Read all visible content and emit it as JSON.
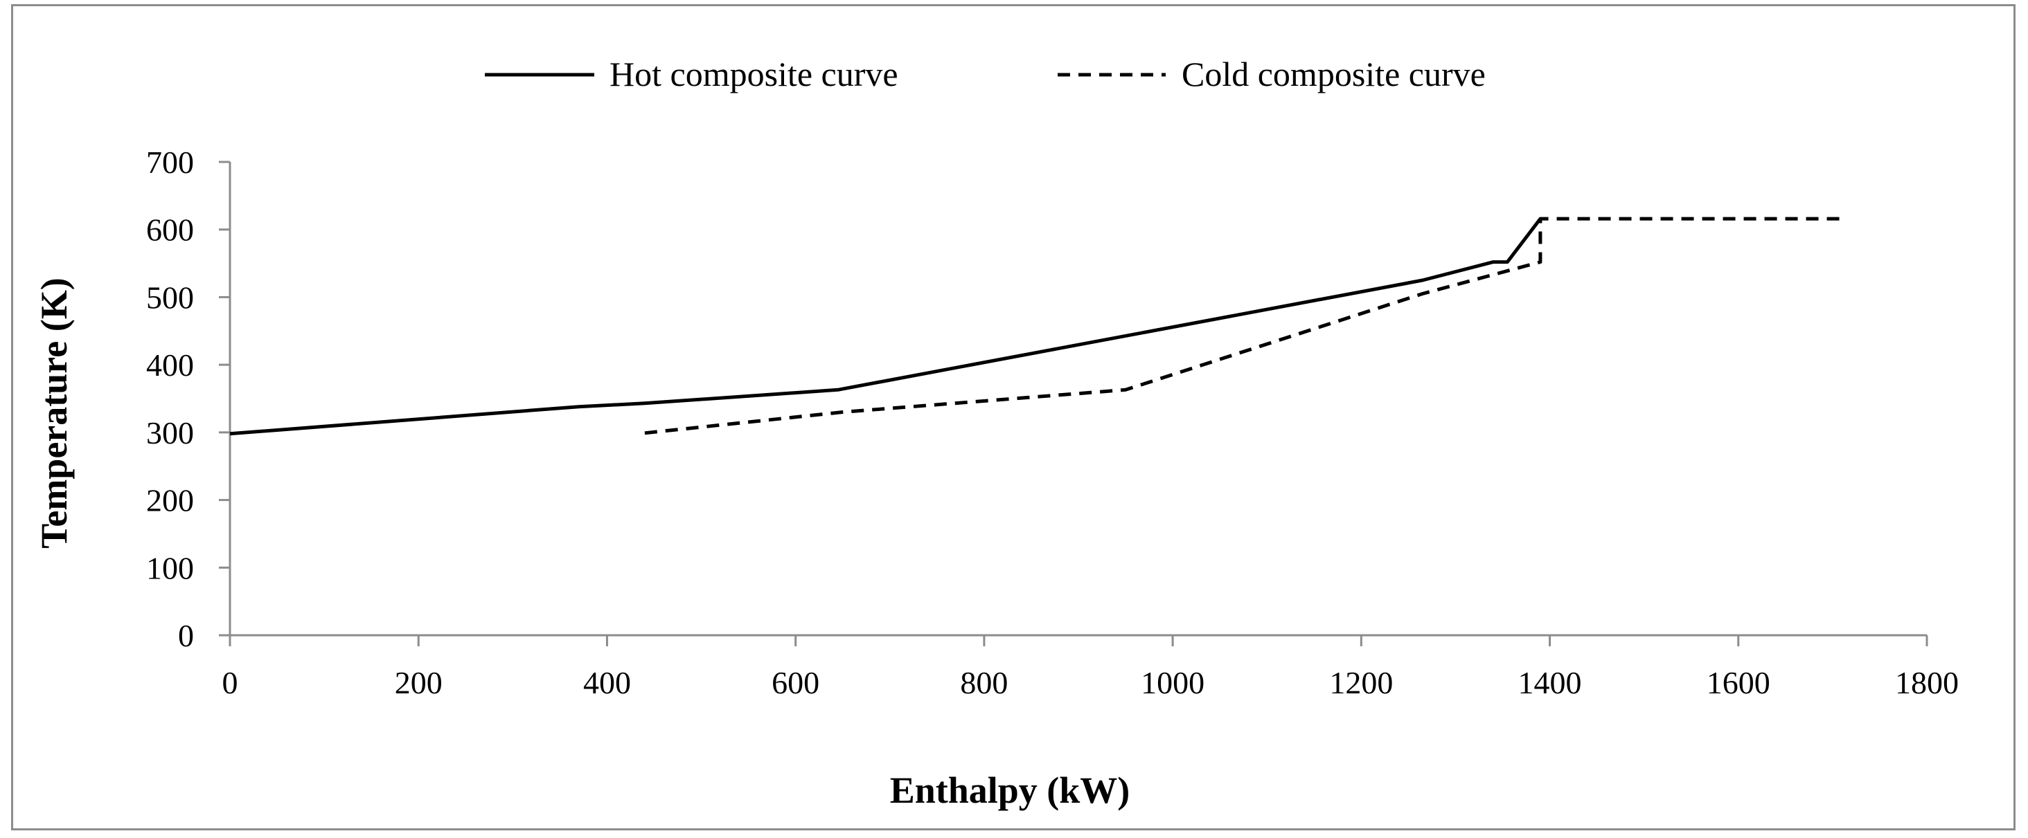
{
  "chart_data": {
    "type": "line",
    "title": "",
    "xlabel": "Enthalpy (kW)",
    "ylabel": "Temperature (K)",
    "xlim": [
      0,
      1800
    ],
    "ylim": [
      0,
      700
    ],
    "x_ticks": [
      0,
      200,
      400,
      600,
      800,
      1000,
      1200,
      1400,
      1600,
      1800
    ],
    "x_tick_labels": [
      "0",
      "200",
      "400",
      "600",
      "800",
      "1000",
      "1200",
      "1400",
      "1600",
      "1800"
    ],
    "y_ticks": [
      0,
      100,
      200,
      300,
      400,
      500,
      600,
      700
    ],
    "y_tick_labels": [
      "0",
      "100",
      "200",
      "300",
      "400",
      "500",
      "600",
      "700"
    ],
    "grid": false,
    "legend_position": "top-center",
    "series": [
      {
        "name": "Hot composite curve",
        "line_style": "solid",
        "color": "#000000",
        "x": [
          0,
          370,
          440,
          645,
          1265,
          1340,
          1355,
          1390
        ],
        "y": [
          298,
          338,
          343,
          363,
          525,
          552,
          552,
          616
        ]
      },
      {
        "name": "Cold composite curve",
        "line_style": "dashed",
        "color": "#000000",
        "x": [
          440,
          650,
          950,
          1265,
          1390,
          1390,
          1710
        ],
        "y": [
          299,
          330,
          363,
          505,
          552,
          616,
          616
        ]
      }
    ]
  }
}
